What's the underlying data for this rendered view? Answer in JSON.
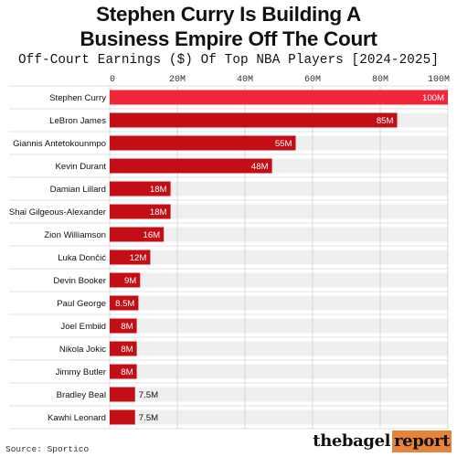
{
  "header": {
    "title_line1": "Stephen Curry Is Building A",
    "title_line2": "Business Empire Off The Court",
    "subtitle": "Off-Court Earnings ($) Of Top NBA Players [2024-2025]"
  },
  "footer": {
    "source": "Source: Sportico",
    "logo_part1": "thebagel",
    "logo_part2": "report"
  },
  "colors": {
    "highlight": "#f0263a",
    "bar": "#c40e16",
    "track": "#efefef",
    "logo_accent": "#e8833a"
  },
  "chart_data": {
    "type": "bar",
    "orientation": "horizontal",
    "title": "Stephen Curry Is Building A Business Empire Off The Court",
    "subtitle": "Off-Court Earnings ($) Of Top NBA Players [2024-2025]",
    "xlabel": "",
    "ylabel": "",
    "xlim": [
      0,
      100
    ],
    "ticks": [
      {
        "value": 0,
        "label": "0"
      },
      {
        "value": 20,
        "label": "20M"
      },
      {
        "value": 40,
        "label": "40M"
      },
      {
        "value": 60,
        "label": "60M"
      },
      {
        "value": 80,
        "label": "80M"
      },
      {
        "value": 100,
        "label": "100M"
      }
    ],
    "categories": [
      "Stephen Curry",
      "LeBron James",
      "Giannis Antetokounmpo",
      "Kevin Durant",
      "Damian Lillard",
      "Shai Gilgeous-Alexander",
      "Zion Williamson",
      "Luka Dončić",
      "Devin Booker",
      "Paul George",
      "Joel Embiid",
      "Nikola Jokic",
      "Jimmy Butler",
      "Bradley Beal",
      "Kawhi Leonard"
    ],
    "values": [
      100,
      85,
      55,
      48,
      18,
      18,
      16,
      12,
      9,
      8.5,
      8,
      8,
      8,
      7.5,
      7.5
    ],
    "labels": [
      "100M",
      "85M",
      "55M",
      "48M",
      "18M",
      "18M",
      "16M",
      "12M",
      "9M",
      "8.5M",
      "8M",
      "8M",
      "8M",
      "7.5M",
      "7.5M"
    ],
    "highlighted": [
      "Stephen Curry"
    ],
    "grid": true,
    "legend": "none"
  }
}
